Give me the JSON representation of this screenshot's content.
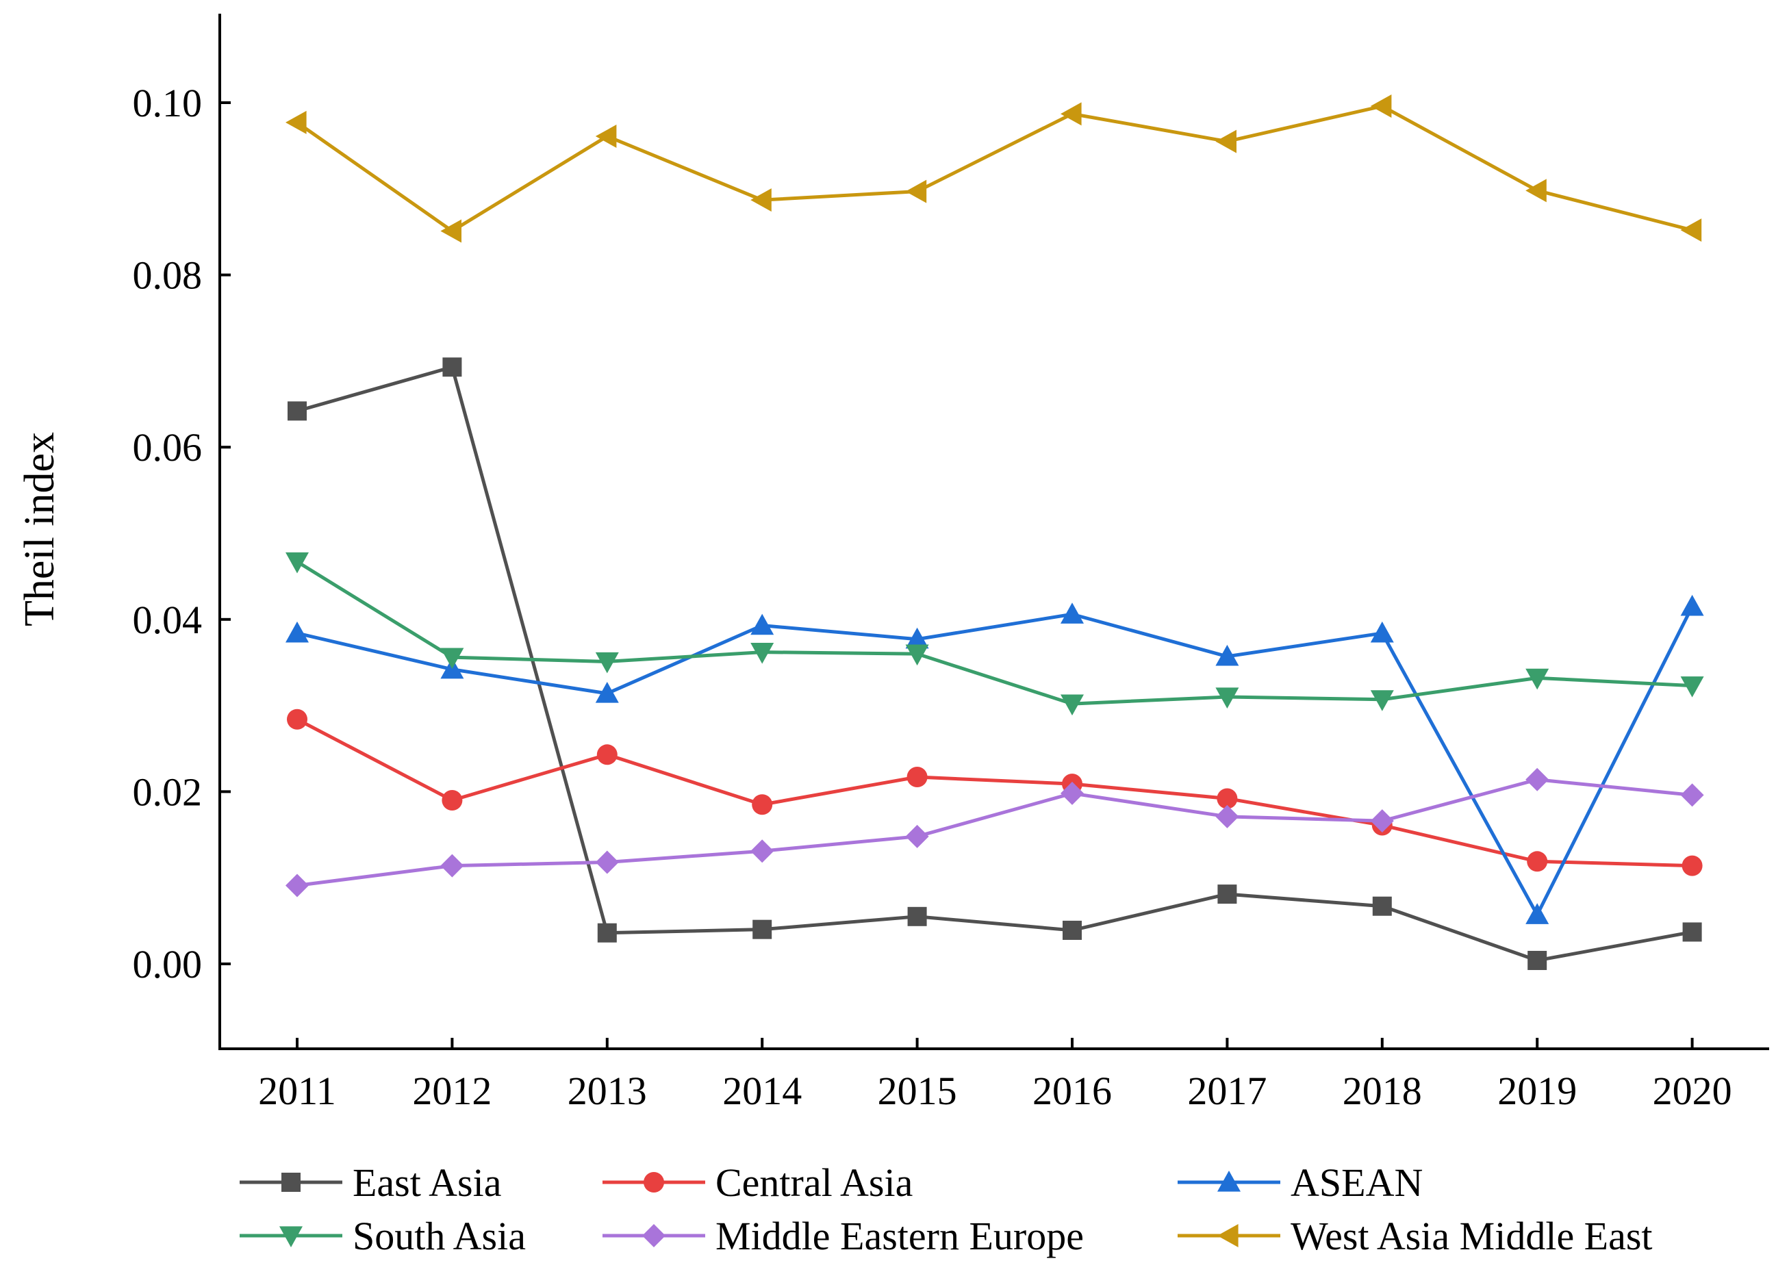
{
  "chart_data": {
    "type": "line",
    "title": "",
    "xlabel": "",
    "ylabel": "Theil index",
    "ylim": [
      -0.01,
      0.11
    ],
    "yticks": [
      "0.00",
      "0.02",
      "0.04",
      "0.06",
      "0.08",
      "0.10"
    ],
    "ytick_values": [
      0.0,
      0.02,
      0.04,
      0.06,
      0.08,
      0.1
    ],
    "categories": [
      "2011",
      "2012",
      "2013",
      "2014",
      "2015",
      "2016",
      "2017",
      "2018",
      "2019",
      "2020"
    ],
    "grid": false,
    "legend_position": "bottom",
    "series": [
      {
        "name": "East Asia",
        "color": "#505050",
        "marker": "square",
        "values": [
          0.0642,
          0.0693,
          0.0036,
          0.004,
          0.0055,
          0.0039,
          0.0081,
          0.0067,
          0.0004,
          0.0037
        ]
      },
      {
        "name": "Central Asia",
        "color": "#E8403F",
        "marker": "circle",
        "values": [
          0.0284,
          0.019,
          0.0243,
          0.0185,
          0.0217,
          0.0209,
          0.0192,
          0.0161,
          0.0119,
          0.0114
        ]
      },
      {
        "name": "ASEAN",
        "color": "#1F6FD6",
        "marker": "triangle-up",
        "values": [
          0.0384,
          0.0342,
          0.0314,
          0.0393,
          0.0377,
          0.0406,
          0.0357,
          0.0384,
          0.0057,
          0.0415
        ]
      },
      {
        "name": "South Asia",
        "color": "#3A9E6B",
        "marker": "triangle-down",
        "values": [
          0.0467,
          0.0356,
          0.0351,
          0.0362,
          0.036,
          0.0302,
          0.031,
          0.0307,
          0.0332,
          0.0323
        ]
      },
      {
        "name": "Middle Eastern Europe",
        "color": "#A974DA",
        "marker": "diamond",
        "values": [
          0.0091,
          0.0114,
          0.0118,
          0.0131,
          0.0148,
          0.0198,
          0.0171,
          0.0166,
          0.0214,
          0.0196
        ]
      },
      {
        "name": "West Asia Middle East",
        "color": "#C9970F",
        "marker": "triangle-left",
        "values": [
          0.0977,
          0.0851,
          0.0961,
          0.0887,
          0.0897,
          0.0987,
          0.0955,
          0.0996,
          0.0898,
          0.0852
        ]
      }
    ]
  }
}
